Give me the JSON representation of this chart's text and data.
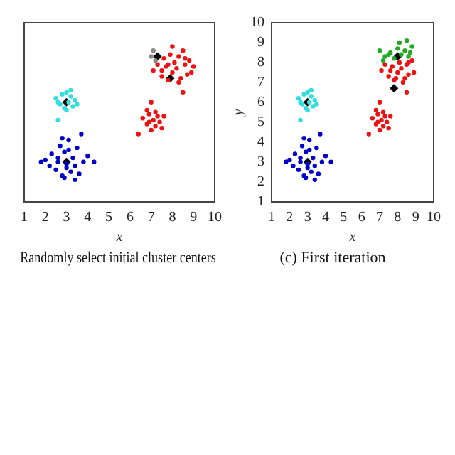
{
  "chart_data": [
    {
      "type": "scatter",
      "title": "Randomly select initial cluster centers",
      "xlabel": "x",
      "xlim": [
        1,
        10
      ],
      "ylim": [
        1,
        10
      ],
      "xticks": [
        1,
        2,
        3,
        4,
        5,
        6,
        7,
        8,
        9,
        10
      ],
      "yticks": [
        1,
        2,
        3,
        4,
        5,
        6,
        7,
        8,
        9,
        10
      ],
      "tick_labels": "x",
      "grid": false,
      "legend": false,
      "marker": "circle",
      "series": [
        {
          "color": "#0000cc",
          "x": [
            2.0,
            2.3,
            2.5,
            2.6,
            2.7,
            2.8,
            2.9,
            3.0,
            3.1,
            3.2,
            3.3,
            3.4,
            3.5,
            3.6,
            3.8,
            4.0,
            4.3,
            2.2,
            2.9,
            3.1,
            2.6,
            3.4,
            2.8,
            3.0,
            1.8,
            3.7
          ],
          "values": [
            3.1,
            3.4,
            2.6,
            3.0,
            3.8,
            2.3,
            3.5,
            2.9,
            4.1,
            2.5,
            3.2,
            2.1,
            3.7,
            2.4,
            3.0,
            3.3,
            3.0,
            2.8,
            2.2,
            3.6,
            3.2,
            2.8,
            4.2,
            2.7,
            3.0,
            4.4
          ]
        },
        {
          "color": "#33dddd",
          "x": [
            2.5,
            2.7,
            2.8,
            2.9,
            3.0,
            3.1,
            3.2,
            3.3,
            3.4,
            3.5,
            2.6,
            3.0,
            3.2,
            2.6
          ],
          "values": [
            6.2,
            5.9,
            6.4,
            5.7,
            6.5,
            6.0,
            6.3,
            5.8,
            6.1,
            5.9,
            5.1,
            5.6,
            6.6,
            6.0
          ]
        },
        {
          "color": "#ee1111",
          "x": [
            6.4,
            6.6,
            6.8,
            6.9,
            7.0,
            7.1,
            7.2,
            7.3,
            7.4,
            7.5,
            6.8,
            7.0,
            7.2,
            6.9,
            7.6
          ],
          "values": [
            4.4,
            5.2,
            4.9,
            5.4,
            6.0,
            5.1,
            4.8,
            5.3,
            5.0,
            4.7,
            5.6,
            4.6,
            5.5,
            5.0,
            5.3
          ]
        },
        {
          "color": "#ee1111",
          "x": [
            7.1,
            7.3,
            7.5,
            7.6,
            7.7,
            7.8,
            7.9,
            8.0,
            8.1,
            8.2,
            8.3,
            8.4,
            8.5,
            8.6,
            8.7,
            8.8,
            9.0,
            7.5,
            8.0,
            8.3,
            8.6,
            8.9,
            8.5,
            7.8
          ],
          "values": [
            7.6,
            7.9,
            7.3,
            8.2,
            7.8,
            7.1,
            8.4,
            7.5,
            8.0,
            7.7,
            8.3,
            7.2,
            8.6,
            7.9,
            7.4,
            8.1,
            7.8,
            7.6,
            8.8,
            7.0,
            8.2,
            7.5,
            6.5,
            7.9
          ]
        },
        {
          "color": "#888888",
          "x": [
            7.1,
            7.0,
            7.2
          ],
          "values": [
            8.6,
            8.3,
            8.1
          ]
        },
        {
          "color": "#000000",
          "marker": "diamond",
          "x": [
            3,
            3,
            7.3,
            7.9
          ],
          "values": [
            6,
            3,
            8.3,
            7.2
          ]
        }
      ]
    },
    {
      "type": "scatter",
      "title": "(c) First iteration",
      "xlabel": "x",
      "ylabel": "y",
      "xlim": [
        1,
        10
      ],
      "ylim": [
        1,
        10
      ],
      "xticks": [
        1,
        2,
        3,
        4,
        5,
        6,
        7,
        8,
        9,
        10
      ],
      "yticks": [
        1,
        2,
        3,
        4,
        5,
        6,
        7,
        8,
        9,
        10
      ],
      "grid": false,
      "legend": false,
      "marker": "circle",
      "series": [
        {
          "color": "#0000cc",
          "x": [
            2.0,
            2.3,
            2.5,
            2.6,
            2.7,
            2.8,
            2.9,
            3.0,
            3.1,
            3.2,
            3.3,
            3.4,
            3.5,
            3.6,
            3.8,
            4.0,
            4.3,
            2.2,
            2.9,
            3.1,
            2.6,
            3.4,
            2.8,
            3.0,
            1.8,
            3.7
          ],
          "values": [
            3.1,
            3.4,
            2.6,
            3.0,
            3.8,
            2.3,
            3.5,
            2.9,
            4.1,
            2.5,
            3.2,
            2.1,
            3.7,
            2.4,
            3.0,
            3.3,
            3.0,
            2.8,
            2.2,
            3.6,
            3.2,
            2.8,
            4.2,
            2.7,
            3.0,
            4.4
          ]
        },
        {
          "color": "#33dddd",
          "x": [
            2.5,
            2.7,
            2.8,
            2.9,
            3.0,
            3.1,
            3.2,
            3.3,
            3.4,
            3.5,
            2.6,
            3.0,
            3.2,
            2.6
          ],
          "values": [
            6.2,
            5.9,
            6.4,
            5.7,
            6.5,
            6.0,
            6.3,
            5.8,
            6.1,
            5.9,
            5.1,
            5.6,
            6.6,
            6.0
          ]
        },
        {
          "color": "#ee1111",
          "x": [
            6.4,
            6.6,
            6.8,
            6.9,
            7.0,
            7.1,
            7.2,
            7.3,
            7.4,
            7.5,
            6.8,
            7.0,
            7.2,
            6.9,
            7.6
          ],
          "values": [
            4.4,
            5.2,
            4.9,
            5.4,
            6.0,
            5.1,
            4.8,
            5.3,
            5.0,
            4.7,
            5.6,
            4.6,
            5.5,
            5.0,
            5.3
          ]
        },
        {
          "color": "#ee1111",
          "x": [
            7.1,
            7.3,
            7.5,
            7.7,
            7.8,
            8.0,
            8.1,
            8.2,
            8.4,
            8.5,
            8.6,
            8.8,
            7.6,
            8.3,
            8.6,
            8.9,
            8.5,
            7.9
          ],
          "values": [
            7.6,
            7.9,
            7.3,
            7.8,
            7.1,
            7.5,
            8.0,
            7.7,
            7.2,
            7.9,
            7.4,
            8.1,
            7.6,
            7.0,
            8.0,
            7.5,
            6.5,
            7.2
          ]
        },
        {
          "color": "#22aa22",
          "x": [
            7.0,
            7.3,
            7.6,
            7.8,
            8.0,
            8.2,
            8.4,
            8.6,
            8.8,
            7.5,
            8.1,
            8.5,
            7.2,
            8.7
          ],
          "values": [
            8.6,
            8.3,
            8.5,
            8.2,
            8.7,
            8.4,
            8.6,
            8.3,
            8.8,
            8.4,
            9.0,
            9.1,
            8.1,
            8.5
          ]
        },
        {
          "color": "#000000",
          "marker": "diamond",
          "x": [
            3,
            3,
            8,
            7.8
          ],
          "values": [
            6,
            3,
            8.3,
            6.7
          ]
        }
      ]
    }
  ]
}
